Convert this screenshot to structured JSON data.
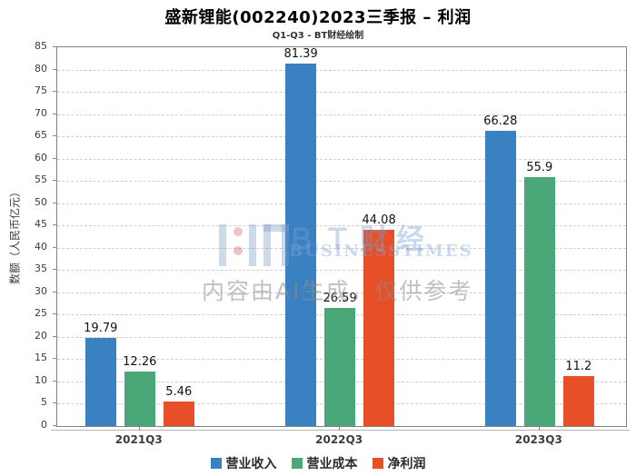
{
  "chart_data": {
    "type": "bar",
    "title": "盛新锂能(002240)2023三季报 – 利润",
    "subtitle": "Q1-Q3 - BT财经绘制",
    "ylabel": "数额（人民币亿元）",
    "xlabel": "",
    "categories": [
      "2021Q3",
      "2022Q3",
      "2023Q3"
    ],
    "series": [
      {
        "name": "营业收入",
        "color": "#3a81c1",
        "values": [
          19.79,
          81.39,
          66.28
        ]
      },
      {
        "name": "营业成本",
        "color": "#4aa878",
        "values": [
          12.26,
          26.59,
          55.9
        ]
      },
      {
        "name": "净利润",
        "color": "#e74f28",
        "values": [
          5.46,
          44.08,
          11.2
        ]
      }
    ],
    "ylim": [
      0,
      85
    ],
    "ytick_step": 5,
    "grid": "horizontal-dashed",
    "legend_position": "bottom"
  },
  "watermark": {
    "brand": "ＢＴ财经",
    "brand_sub": "BUSINESSTIMES",
    "disclaimer": "内容由AI生成，仅供参考"
  }
}
